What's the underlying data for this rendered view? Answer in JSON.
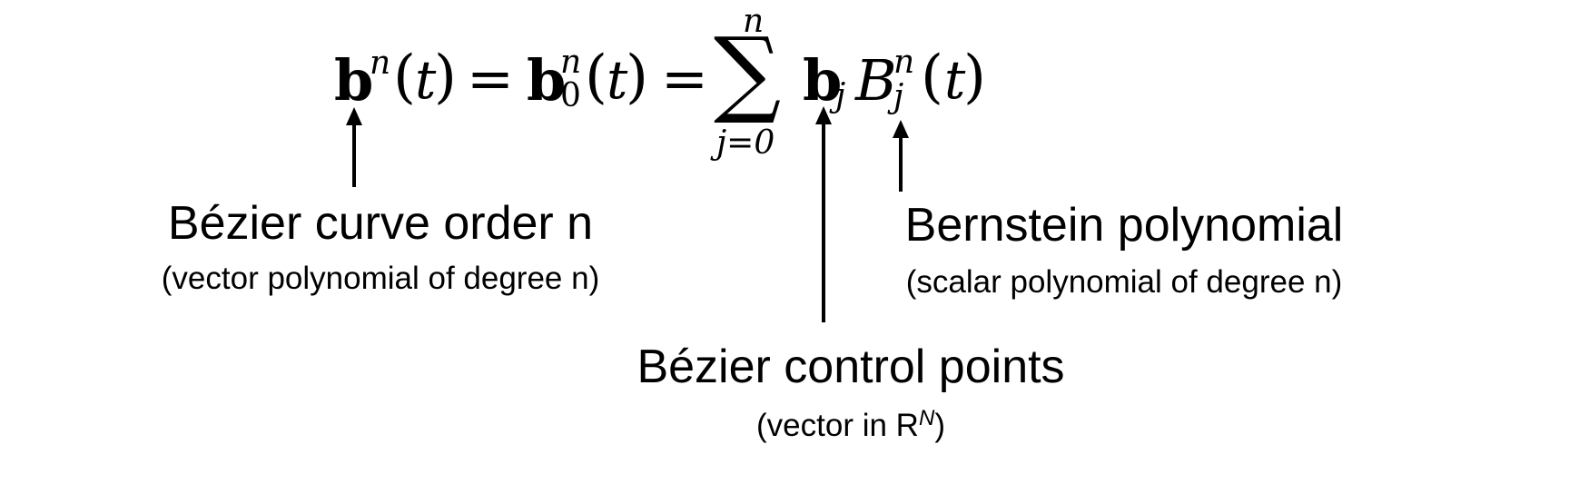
{
  "equation": {
    "bold_b": "b",
    "sup_n": "n",
    "sub_zero": "0",
    "open_paren": "(",
    "close_paren": ")",
    "var_t": "t",
    "equals": "=",
    "sigma": "∑",
    "sigma_upper": "n",
    "sigma_lower": "j=0",
    "sub_j": "j",
    "B": "B"
  },
  "labels": {
    "curve": {
      "title": "Bézier curve order n",
      "subtitle": "(vector polynomial of degree n)"
    },
    "bernstein": {
      "title": "Bernstein polynomial",
      "subtitle": "(scalar polynomial of degree n)"
    },
    "control_points": {
      "title": "Bézier control points",
      "subtitle_prefix": "(vector in R",
      "subtitle_sup": "N",
      "subtitle_suffix": ")"
    }
  }
}
